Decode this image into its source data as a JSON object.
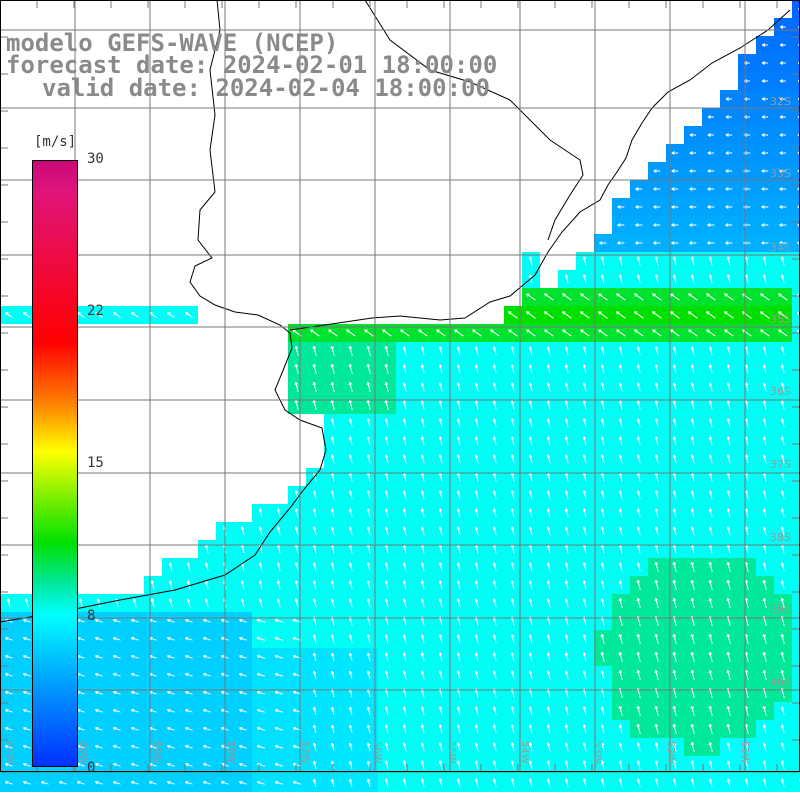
{
  "title": {
    "line1": "modelo GEFS-WAVE (NCEP)",
    "line2": "forecast date: 2024-02-01 18:00:00",
    "line3": "valid date: 2024-02-04 18:00:00"
  },
  "colorbar": {
    "unit": "[m/s]",
    "ticks": [
      "30",
      "22",
      "15",
      "8",
      "0"
    ],
    "min": 0,
    "max": 30
  },
  "lat_labels": [
    "32S",
    "33S",
    "34S",
    "35S",
    "36S",
    "37S",
    "38S",
    "39S",
    "40S"
  ],
  "lon_labels": [
    "61W",
    "60W",
    "59W",
    "58W",
    "57W",
    "56W",
    "55W",
    "54W",
    "53W",
    "52W",
    "51W"
  ],
  "colors": {
    "land": "#ffffff",
    "grid": "#777777",
    "coast": "#000000",
    "arrow": "#ffffff",
    "label": "#8a8a8a"
  }
}
